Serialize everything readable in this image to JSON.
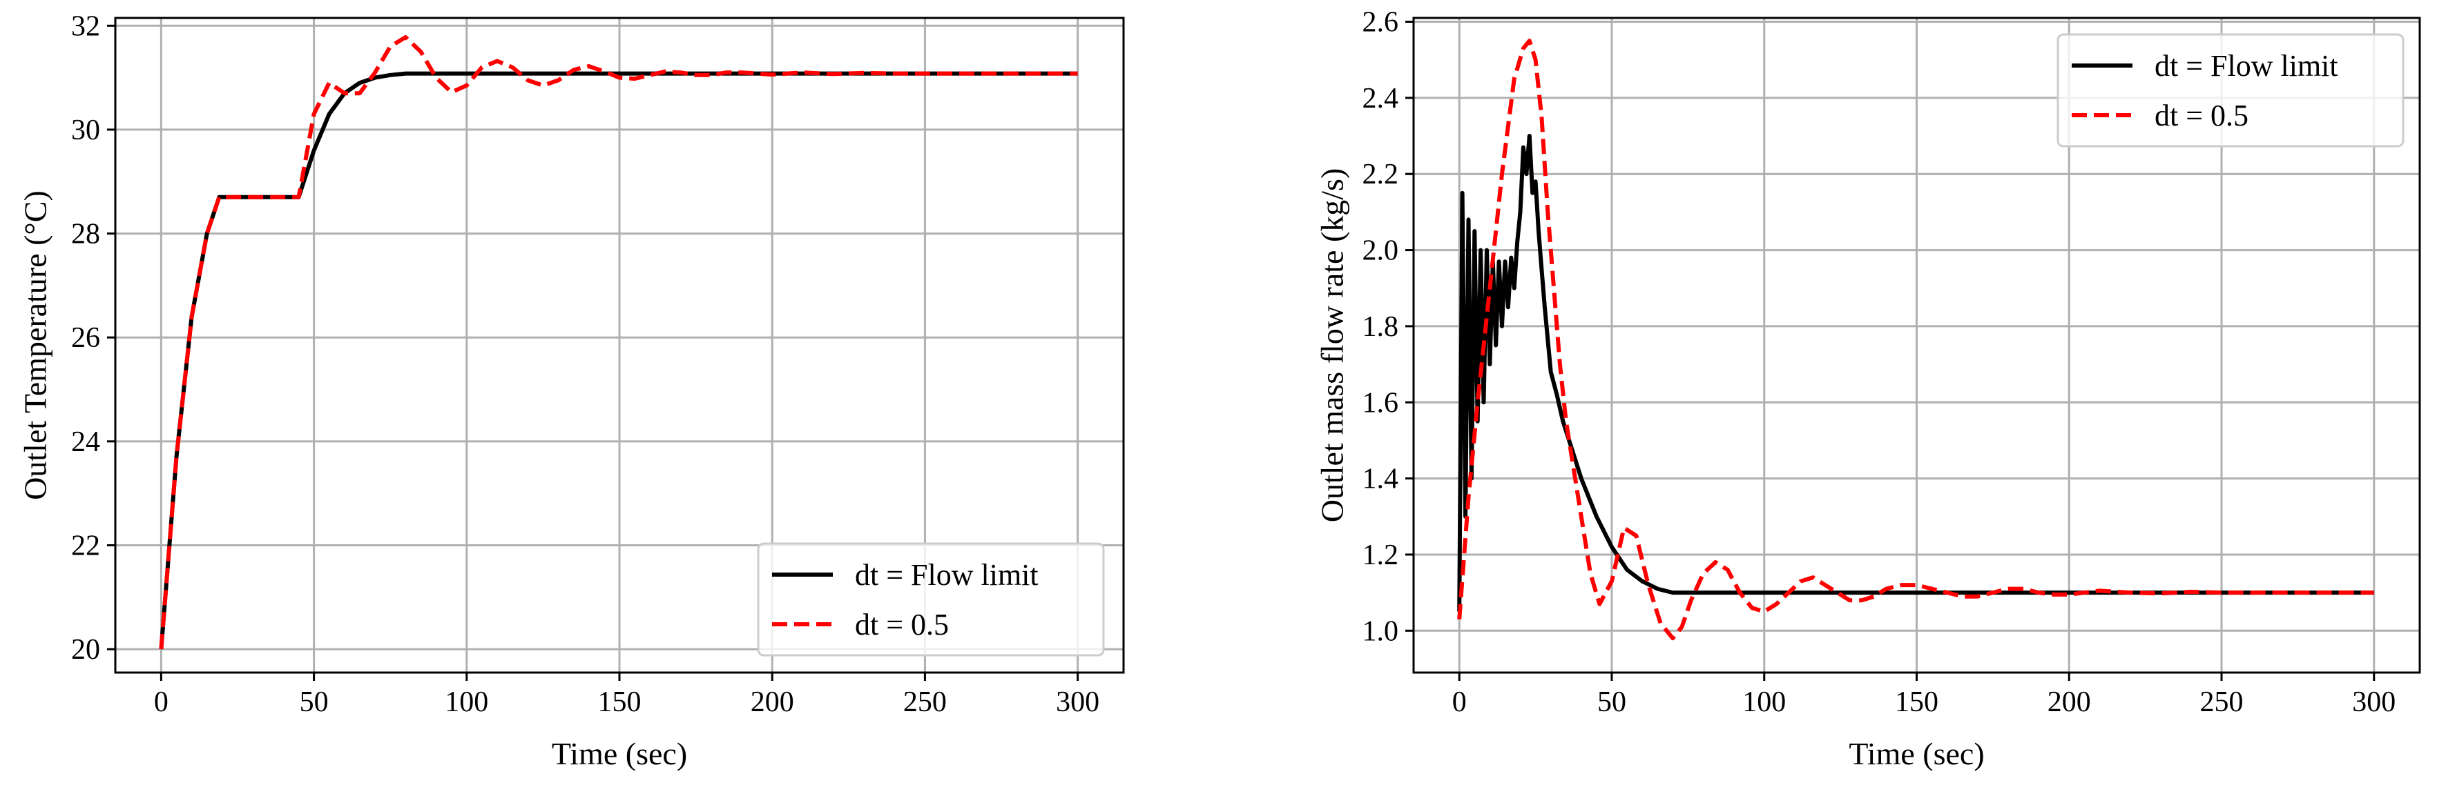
{
  "chart_data": [
    {
      "type": "line",
      "title": "",
      "xlabel": "Time (sec)",
      "ylabel": "Outlet Temperature (°C)",
      "xlim": [
        -15,
        315
      ],
      "ylim": [
        19.55,
        32.15
      ],
      "xticks": [
        0,
        50,
        100,
        150,
        200,
        250,
        300
      ],
      "yticks": [
        20,
        22,
        24,
        26,
        28,
        30,
        32
      ],
      "grid": true,
      "legend_position": "lower-right",
      "series": [
        {
          "name": "dt = Flow limit",
          "color": "#000000",
          "dash": "solid",
          "x": [
            0,
            5,
            10,
            15,
            19,
            25,
            30,
            35,
            40,
            45,
            50,
            55,
            60,
            65,
            70,
            75,
            80,
            85,
            90,
            95,
            100,
            120,
            140,
            160,
            180,
            200,
            220,
            250,
            280,
            300
          ],
          "y": [
            20.0,
            23.7,
            26.4,
            28.0,
            28.7,
            28.7,
            28.7,
            28.7,
            28.7,
            28.7,
            29.6,
            30.3,
            30.7,
            30.9,
            31.0,
            31.05,
            31.08,
            31.08,
            31.08,
            31.08,
            31.08,
            31.08,
            31.08,
            31.08,
            31.08,
            31.08,
            31.08,
            31.08,
            31.08,
            31.08
          ]
        },
        {
          "name": "dt = 0.5",
          "color": "#ff0000",
          "dash": "dashed",
          "x": [
            0,
            5,
            10,
            15,
            19,
            25,
            30,
            35,
            40,
            45,
            50,
            55,
            60,
            65,
            70,
            75,
            80,
            85,
            90,
            95,
            100,
            105,
            110,
            115,
            120,
            125,
            130,
            135,
            140,
            145,
            150,
            155,
            160,
            165,
            170,
            175,
            180,
            185,
            190,
            200,
            210,
            220,
            230,
            240,
            250,
            260,
            270,
            280,
            290,
            300
          ],
          "y": [
            20.0,
            23.7,
            26.4,
            28.0,
            28.7,
            28.7,
            28.7,
            28.7,
            28.7,
            28.7,
            30.3,
            30.9,
            30.7,
            30.7,
            31.1,
            31.6,
            31.78,
            31.5,
            31.0,
            30.72,
            30.85,
            31.2,
            31.32,
            31.2,
            30.95,
            30.85,
            30.95,
            31.15,
            31.22,
            31.12,
            31.0,
            30.98,
            31.05,
            31.12,
            31.1,
            31.05,
            31.05,
            31.1,
            31.1,
            31.06,
            31.1,
            31.07,
            31.09,
            31.08,
            31.08,
            31.08,
            31.08,
            31.08,
            31.08,
            31.08
          ]
        }
      ]
    },
    {
      "type": "line",
      "title": "",
      "xlabel": "Time (sec)",
      "ylabel": "Outlet mass flow rate (kg/s)",
      "xlim": [
        -15,
        315
      ],
      "ylim": [
        0.89,
        2.61
      ],
      "xticks": [
        0,
        50,
        100,
        150,
        200,
        250,
        300
      ],
      "yticks": [
        1.0,
        1.2,
        1.4,
        1.6,
        1.8,
        2.0,
        2.2,
        2.4,
        2.6
      ],
      "grid": true,
      "legend_position": "top-right",
      "series": [
        {
          "name": "dt = Flow limit",
          "color": "#000000",
          "dash": "solid",
          "x": [
            0,
            1,
            2,
            3,
            4,
            5,
            6,
            7,
            8,
            9,
            10,
            11,
            12,
            13,
            14,
            15,
            16,
            17,
            18,
            19,
            20,
            21,
            22,
            23,
            24,
            25,
            26,
            27,
            28,
            30,
            32,
            34,
            36,
            38,
            40,
            45,
            50,
            55,
            60,
            65,
            70,
            80,
            100,
            150,
            200,
            250,
            300
          ],
          "y": [
            1.05,
            2.15,
            1.3,
            2.08,
            1.4,
            2.05,
            1.55,
            2.0,
            1.6,
            2.0,
            1.7,
            1.97,
            1.75,
            1.97,
            1.8,
            1.97,
            1.85,
            1.98,
            1.9,
            2.02,
            2.1,
            2.27,
            2.2,
            2.3,
            2.15,
            2.18,
            2.05,
            1.95,
            1.85,
            1.68,
            1.62,
            1.55,
            1.5,
            1.45,
            1.4,
            1.3,
            1.22,
            1.16,
            1.13,
            1.11,
            1.1,
            1.1,
            1.1,
            1.1,
            1.1,
            1.1,
            1.1
          ]
        },
        {
          "name": "dt = 0.5",
          "color": "#ff0000",
          "dash": "dashed",
          "x": [
            0,
            3,
            6,
            10,
            14,
            18,
            21,
            23,
            25,
            27,
            29,
            31,
            33,
            35,
            37,
            40,
            43,
            46,
            50,
            54,
            58,
            62,
            66,
            70,
            73,
            76,
            80,
            84,
            88,
            92,
            96,
            100,
            104,
            108,
            112,
            116,
            120,
            124,
            128,
            132,
            136,
            140,
            145,
            150,
            155,
            160,
            165,
            170,
            175,
            180,
            185,
            190,
            195,
            200,
            205,
            210,
            220,
            230,
            240,
            250,
            260,
            270,
            280,
            290,
            300
          ],
          "y": [
            1.03,
            1.35,
            1.6,
            1.9,
            2.2,
            2.45,
            2.53,
            2.55,
            2.5,
            2.35,
            2.1,
            1.9,
            1.7,
            1.55,
            1.45,
            1.3,
            1.15,
            1.07,
            1.13,
            1.27,
            1.25,
            1.12,
            1.02,
            0.98,
            1.01,
            1.08,
            1.15,
            1.18,
            1.16,
            1.1,
            1.06,
            1.05,
            1.07,
            1.1,
            1.13,
            1.14,
            1.12,
            1.1,
            1.08,
            1.08,
            1.09,
            1.11,
            1.12,
            1.12,
            1.11,
            1.1,
            1.09,
            1.09,
            1.1,
            1.11,
            1.11,
            1.1,
            1.095,
            1.095,
            1.1,
            1.105,
            1.1,
            1.098,
            1.102,
            1.1,
            1.1,
            1.1,
            1.1,
            1.1,
            1.1
          ]
        }
      ]
    }
  ]
}
